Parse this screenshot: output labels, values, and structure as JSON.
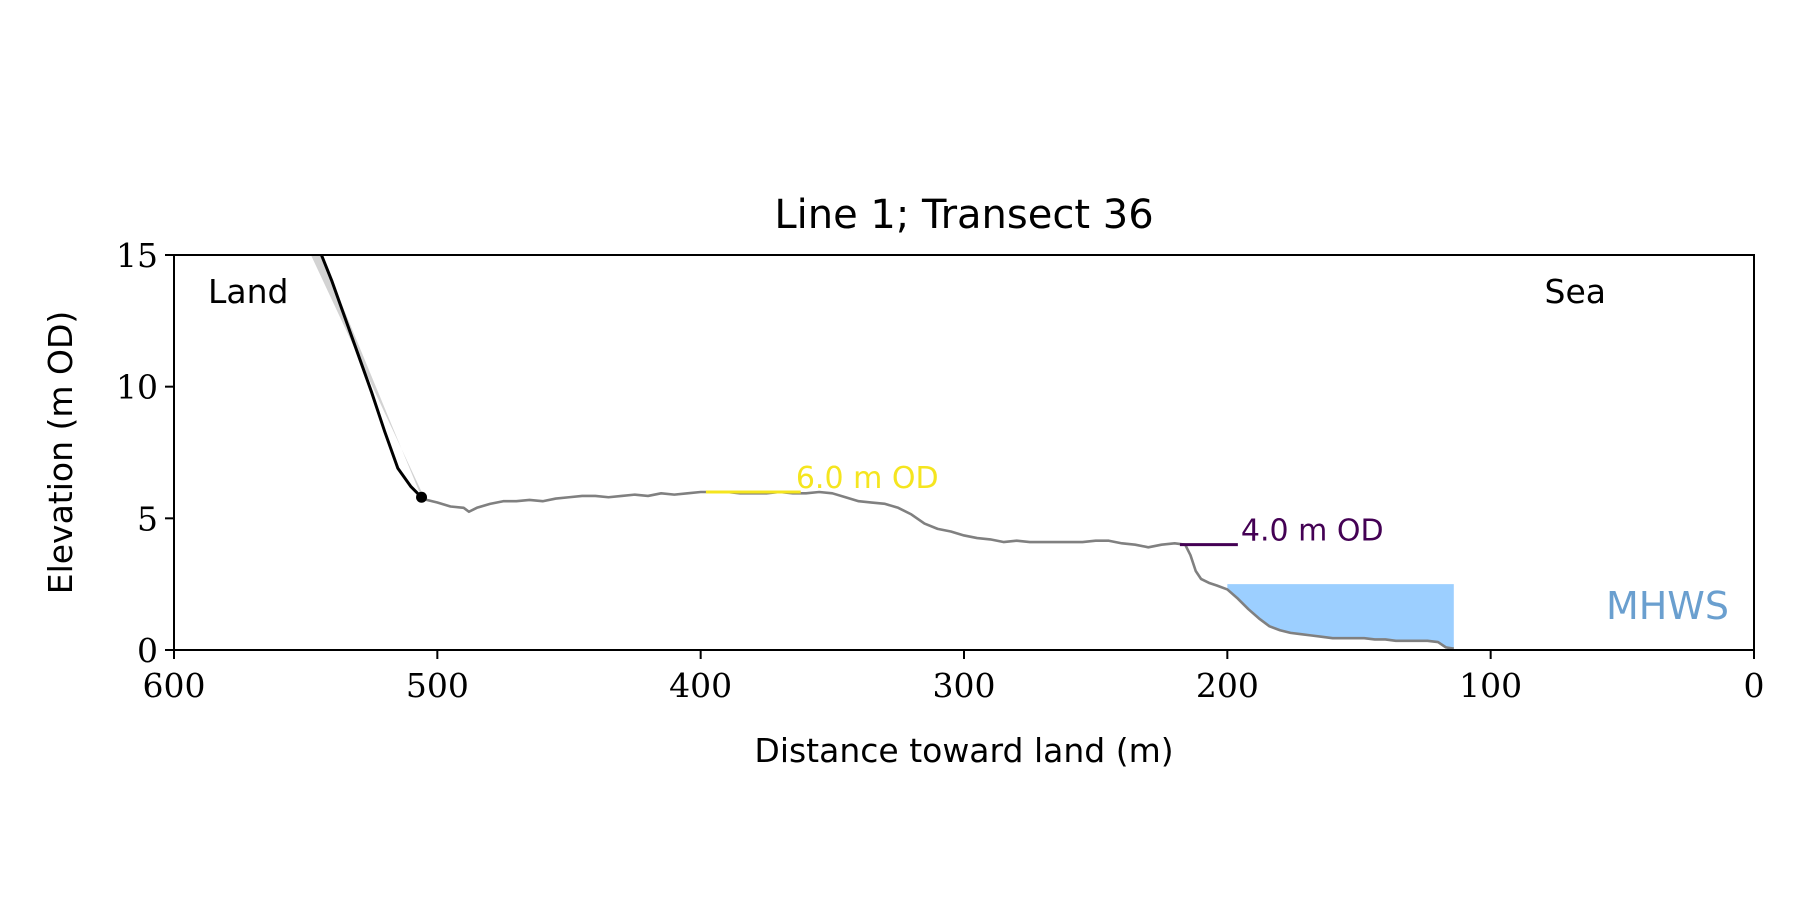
{
  "chart_data": {
    "type": "line",
    "title": "Line 1; Transect 36",
    "xlabel": "Distance toward land (m)",
    "ylabel": "Elevation (m OD)",
    "xlim": [
      600,
      0
    ],
    "ylim": [
      0,
      15
    ],
    "x_ticks": [
      600,
      500,
      400,
      300,
      200,
      100,
      0
    ],
    "y_ticks": [
      0,
      5,
      10,
      15
    ],
    "x_tick_labels": [
      "600",
      "500",
      "400",
      "300",
      "200",
      "100",
      "0"
    ],
    "y_tick_labels": [
      "0",
      "5",
      "10",
      "15"
    ],
    "grid": false,
    "corner_labels": {
      "left": "Land",
      "right": "Sea"
    },
    "series": [
      {
        "role": "cliff-face-shading",
        "color": "#d3d3d3",
        "x": [
          544,
          506,
          505,
          548
        ],
        "y": [
          15,
          5.8,
          5.8,
          15
        ]
      },
      {
        "role": "cliff-face",
        "color": "#000000",
        "x": [
          544,
          540,
          535,
          530,
          525,
          520,
          515,
          510,
          506
        ],
        "y": [
          15,
          14.0,
          12.6,
          11.2,
          9.8,
          8.3,
          6.9,
          6.2,
          5.8
        ]
      },
      {
        "role": "ground-profile",
        "color": "#808080",
        "x": [
          506,
          500,
          495,
          490,
          488,
          485,
          480,
          475,
          470,
          465,
          460,
          455,
          450,
          445,
          440,
          435,
          430,
          425,
          420,
          415,
          410,
          405,
          400,
          395,
          390,
          385,
          380,
          375,
          370,
          365,
          360,
          355,
          350,
          345,
          340,
          335,
          330,
          325,
          320,
          315,
          310,
          305,
          300,
          295,
          290,
          285,
          280,
          275,
          270,
          265,
          260,
          255,
          250,
          245,
          240,
          235,
          230,
          225,
          220,
          216,
          214,
          212,
          210,
          207,
          204,
          200,
          196,
          192,
          188,
          184,
          180,
          176,
          172,
          168,
          164,
          160,
          156,
          152,
          148,
          144,
          140,
          136,
          132,
          128,
          124,
          120,
          117,
          114
        ],
        "y": [
          5.75,
          5.6,
          5.45,
          5.4,
          5.25,
          5.4,
          5.55,
          5.65,
          5.65,
          5.7,
          5.65,
          5.75,
          5.8,
          5.85,
          5.85,
          5.8,
          5.85,
          5.9,
          5.85,
          5.95,
          5.9,
          5.95,
          6.0,
          6.0,
          6.0,
          5.95,
          5.95,
          5.95,
          6.0,
          5.95,
          5.95,
          6.0,
          5.95,
          5.8,
          5.65,
          5.6,
          5.55,
          5.4,
          5.15,
          4.8,
          4.6,
          4.5,
          4.35,
          4.25,
          4.2,
          4.1,
          4.15,
          4.1,
          4.1,
          4.1,
          4.1,
          4.1,
          4.15,
          4.15,
          4.05,
          4.0,
          3.9,
          4.0,
          4.05,
          4.0,
          3.6,
          3.0,
          2.7,
          2.55,
          2.45,
          2.3,
          1.95,
          1.55,
          1.2,
          0.9,
          0.75,
          0.65,
          0.6,
          0.55,
          0.5,
          0.45,
          0.45,
          0.45,
          0.45,
          0.4,
          0.4,
          0.35,
          0.35,
          0.35,
          0.35,
          0.3,
          0.1,
          0.05
        ]
      }
    ],
    "cliff_toe_point": {
      "x": 506,
      "y": 5.8,
      "color": "#000000"
    },
    "mhws": {
      "label": "MHWS",
      "level": 2.5,
      "x_from": 200,
      "x_to": 114,
      "color": "#9ccfff",
      "label_color": "#6a9fcf"
    },
    "annotations": [
      {
        "label": "6.0 m OD",
        "x": 365,
        "y": 6.0,
        "segment_x": [
          398,
          362
        ],
        "color": "#f5e51f"
      },
      {
        "label": "4.0 m OD",
        "x": 196,
        "y": 4.0,
        "segment_x": [
          218,
          196
        ],
        "color": "#440154"
      }
    ]
  }
}
